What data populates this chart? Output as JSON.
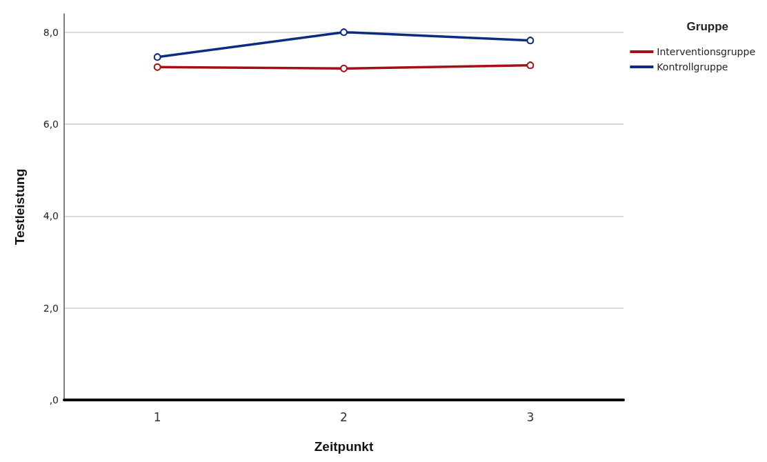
{
  "chart_data": {
    "type": "line",
    "xlabel": "Zeitpunkt",
    "ylabel": "Testleistung",
    "legend_title": "Gruppe",
    "categories": [
      "1",
      "2",
      "3"
    ],
    "series": [
      {
        "name": "Interventionsgruppe",
        "color": "#a50f15",
        "values": [
          7.24,
          7.21,
          7.28
        ]
      },
      {
        "name": "Kontrollgruppe",
        "color": "#0c2c84",
        "values": [
          7.46,
          8.0,
          7.82
        ]
      }
    ],
    "ylim": [
      0,
      8.4
    ],
    "yticks": [
      {
        "value": 0,
        "label": ",0"
      },
      {
        "value": 2,
        "label": "2,0"
      },
      {
        "value": 4,
        "label": "4,0"
      },
      {
        "value": 6,
        "label": "6,0"
      },
      {
        "value": 8,
        "label": "8,0"
      }
    ],
    "grid": "y",
    "legend": "top right",
    "marker": "circle",
    "line_style": "solid"
  }
}
